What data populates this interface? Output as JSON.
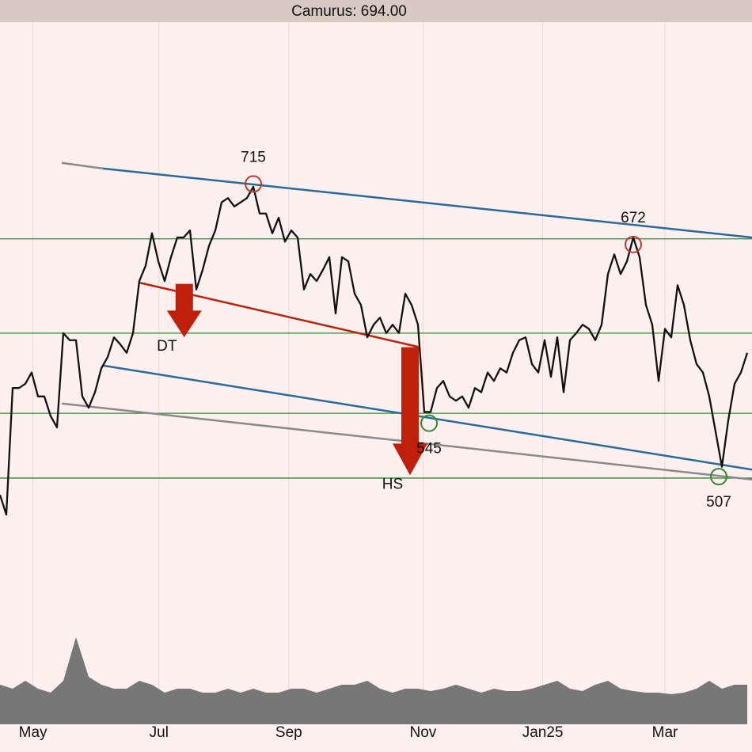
{
  "chart_data": {
    "type": "line",
    "title": "Camurus: 694.00",
    "xlim": [
      0,
      118.75
    ],
    "ylim": [
      331,
      830
    ],
    "xticks": [
      {
        "value": 5.2,
        "label": "May"
      },
      {
        "value": 25.1,
        "label": "Jul"
      },
      {
        "value": 45.6,
        "label": "Sep"
      },
      {
        "value": 66.8,
        "label": "Nov"
      },
      {
        "value": 85.7,
        "label": "Jan25"
      },
      {
        "value": 105,
        "label": "Mar"
      }
    ],
    "grid": true,
    "series": [
      {
        "color": "#111111",
        "x": [
          0,
          1,
          2,
          3,
          4,
          5,
          6,
          7,
          8,
          9,
          10,
          11,
          12,
          13,
          14,
          15,
          16,
          17,
          18,
          19,
          20,
          21,
          22,
          23,
          24,
          25,
          26,
          27,
          28,
          29,
          30,
          31,
          32,
          33,
          34,
          35,
          36,
          37,
          38,
          39,
          40,
          41,
          42,
          43,
          44,
          45,
          46,
          47,
          48,
          49,
          50,
          51,
          52,
          53,
          54,
          55,
          56,
          57,
          58,
          59,
          60,
          61,
          62,
          63,
          64,
          65,
          66,
          67,
          68,
          69,
          70,
          71,
          72,
          73,
          74,
          75,
          76,
          77,
          78,
          79,
          80,
          81,
          82,
          83,
          84,
          85,
          86,
          87,
          88,
          89,
          90,
          91,
          92,
          93,
          94,
          95,
          96,
          97,
          98,
          99,
          100,
          101,
          102,
          103,
          104,
          105,
          106,
          107,
          108,
          109,
          110,
          111,
          112,
          113,
          114,
          115,
          116,
          117,
          118
        ],
        "values": [
          494,
          480,
          570,
          570,
          573,
          581,
          564,
          564,
          550,
          542,
          609,
          604,
          604,
          564,
          556,
          567,
          584,
          592,
          606,
          601,
          595,
          609,
          646,
          657,
          680,
          660,
          646,
          663,
          677,
          677,
          682,
          640,
          654,
          671,
          682,
          702,
          705,
          699,
          702,
          705,
          713,
          694,
          694,
          680,
          691,
          674,
          682,
          677,
          640,
          651,
          646,
          654,
          663,
          623,
          663,
          660,
          637,
          629,
          606,
          615,
          620,
          609,
          615,
          609,
          637,
          629,
          615,
          553,
          553,
          570,
          575,
          564,
          561,
          564,
          556,
          570,
          567,
          581,
          575,
          584,
          581,
          595,
          604,
          606,
          587,
          581,
          604,
          578,
          606,
          567,
          604,
          609,
          615,
          612,
          604,
          615,
          651,
          665,
          651,
          660,
          677,
          663,
          629,
          615,
          575,
          612,
          606,
          643,
          629,
          604,
          587,
          581,
          564,
          539,
          514,
          547,
          573,
          581,
          595
        ]
      }
    ],
    "volume": {
      "color": "#777777",
      "vlim": [
        0,
        120
      ],
      "x": [
        0,
        2,
        4,
        6,
        8,
        10,
        12,
        14,
        16,
        18,
        20,
        22,
        24,
        26,
        28,
        30,
        32,
        34,
        36,
        38,
        40,
        42,
        44,
        46,
        48,
        50,
        52,
        54,
        56,
        58,
        60,
        62,
        64,
        66,
        68,
        70,
        72,
        74,
        76,
        78,
        80,
        82,
        84,
        86,
        88,
        90,
        92,
        94,
        96,
        98,
        100,
        102,
        104,
        106,
        108,
        110,
        112,
        114,
        116,
        118
      ],
      "values": [
        50,
        45,
        55,
        45,
        40,
        55,
        110,
        60,
        50,
        45,
        45,
        55,
        50,
        40,
        45,
        45,
        40,
        40,
        45,
        40,
        45,
        40,
        40,
        45,
        45,
        40,
        45,
        50,
        50,
        55,
        45,
        40,
        45,
        45,
        42,
        45,
        50,
        45,
        40,
        45,
        42,
        42,
        45,
        50,
        55,
        45,
        42,
        50,
        55,
        45,
        42,
        40,
        40,
        38,
        40,
        45,
        55,
        45,
        50,
        50
      ]
    },
    "levels": {
      "color": "#2e8b2e",
      "values": [
        676,
        609,
        552,
        506
      ]
    },
    "trendlines": [
      {
        "color": "#8a8a8a",
        "x": [
          9.75,
          16.25
        ],
        "y": [
          730,
          726
        ]
      },
      {
        "color": "#2a6a9a",
        "x": [
          16.25,
          118.75
        ],
        "y": [
          726,
          677
        ]
      },
      {
        "color": "#2a6a9a",
        "x": [
          16.25,
          118.75
        ],
        "y": [
          586,
          512
        ]
      },
      {
        "color": "#8a8a8a",
        "x": [
          9.75,
          118.75
        ],
        "y": [
          559,
          505
        ]
      },
      {
        "color": "#c0200a",
        "x": [
          21.9,
          66.25
        ],
        "y": [
          645,
          599
        ]
      }
    ],
    "arrows": [
      {
        "label": "DT",
        "color": "#c0200a",
        "x": 29.1,
        "y": [
          644,
          606
        ]
      },
      {
        "label": "HS",
        "color": "#c0200a",
        "x": 64.75,
        "y": [
          599,
          508
        ]
      }
    ],
    "annotations": [
      {
        "text": "715",
        "x": 40,
        "y": 715,
        "color": "#c0392b",
        "position": "above"
      },
      {
        "text": "672",
        "x": 100,
        "y": 672,
        "color": "#c0392b",
        "position": "above"
      },
      {
        "text": "545",
        "x": 67.75,
        "y": 545,
        "color": "#2e8b2e",
        "position": "below"
      },
      {
        "text": "507",
        "x": 113.5,
        "y": 507,
        "color": "#2e8b2e",
        "position": "below"
      }
    ]
  }
}
